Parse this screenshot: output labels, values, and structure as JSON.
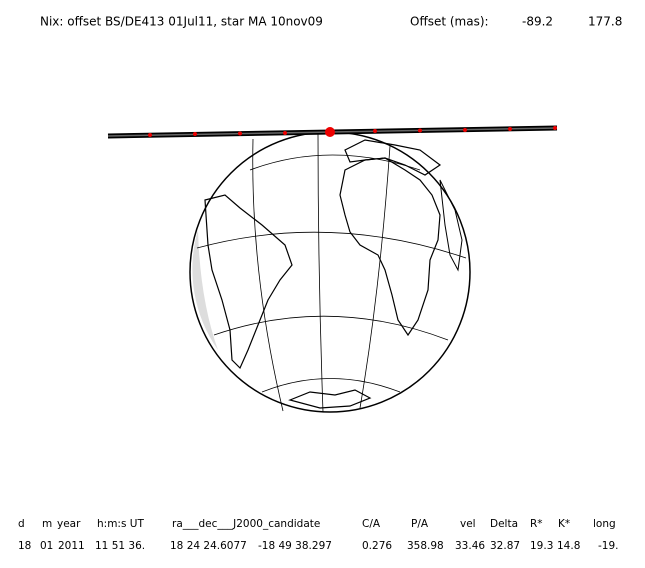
{
  "header": {
    "title": "Nix: offset BS/DE413 01Jul11, star MA 10nov09",
    "offset_label": "Offset (mas):",
    "offset_values": [
      "-89.2",
      "177.8"
    ]
  },
  "table": {
    "headers": [
      "d",
      "m",
      "year",
      "h:m:s UT",
      "ra___dec___J2000_candidate",
      "C/A",
      "P/A",
      "vel",
      "Delta",
      "R*",
      "K*",
      "long"
    ],
    "row": [
      "18",
      "01",
      "2011",
      "11 51 36.",
      "18 24 24.6077",
      "-18 49 38.297",
      "0.276",
      "358.98",
      "33.46",
      "32.87",
      "19.3",
      "14.8",
      "-19."
    ]
  }
}
